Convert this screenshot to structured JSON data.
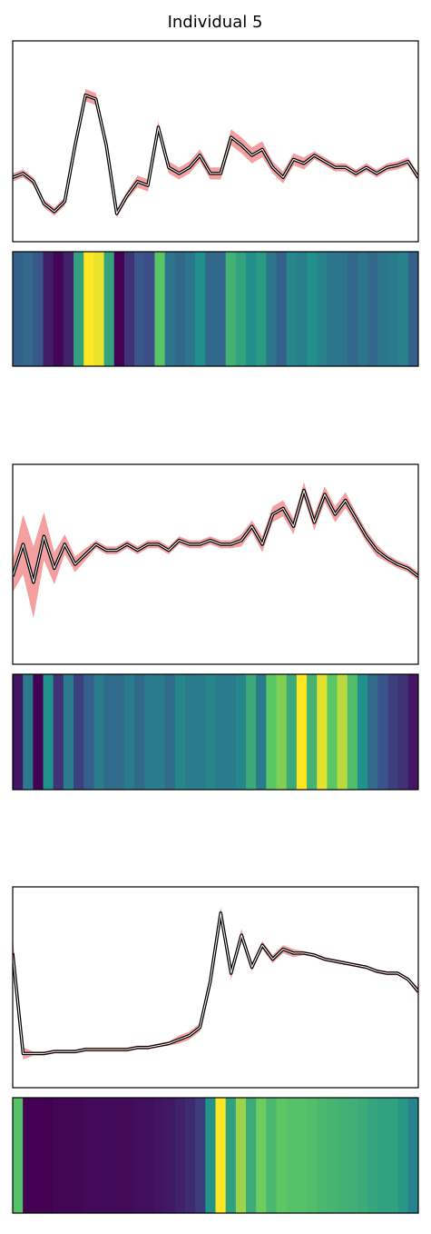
{
  "title": "Individual 5",
  "chart_data": [
    {
      "type": "line",
      "xlim": [
        0,
        39
      ],
      "ylim": [
        0,
        1
      ],
      "x": [
        0,
        1,
        2,
        3,
        4,
        5,
        6,
        7,
        8,
        9,
        10,
        11,
        12,
        13,
        14,
        15,
        16,
        17,
        18,
        19,
        20,
        21,
        22,
        23,
        24,
        25,
        26,
        27,
        28,
        29,
        30,
        31,
        32,
        33,
        34,
        35,
        36,
        37,
        38,
        39
      ],
      "values": [
        0.32,
        0.34,
        0.3,
        0.19,
        0.15,
        0.2,
        0.48,
        0.73,
        0.71,
        0.48,
        0.14,
        0.23,
        0.3,
        0.28,
        0.57,
        0.37,
        0.34,
        0.37,
        0.43,
        0.34,
        0.34,
        0.52,
        0.48,
        0.43,
        0.46,
        0.37,
        0.32,
        0.41,
        0.39,
        0.43,
        0.4,
        0.37,
        0.37,
        0.34,
        0.37,
        0.34,
        0.37,
        0.38,
        0.4,
        0.32
      ],
      "errors": [
        0.02,
        0.02,
        0.02,
        0.02,
        0.02,
        0.02,
        0.03,
        0.03,
        0.03,
        0.03,
        0.02,
        0.02,
        0.03,
        0.03,
        0.03,
        0.03,
        0.03,
        0.03,
        0.03,
        0.03,
        0.03,
        0.04,
        0.04,
        0.04,
        0.04,
        0.03,
        0.03,
        0.03,
        0.03,
        0.02,
        0.02,
        0.02,
        0.02,
        0.02,
        0.02,
        0.02,
        0.02,
        0.02,
        0.02,
        0.02
      ],
      "line_color": "#000000",
      "band_color": "#f08080"
    },
    {
      "type": "heatmap",
      "clim": [
        0.14,
        0.73
      ],
      "values": [
        0.32,
        0.34,
        0.3,
        0.19,
        0.15,
        0.2,
        0.48,
        0.73,
        0.71,
        0.48,
        0.14,
        0.23,
        0.3,
        0.28,
        0.57,
        0.37,
        0.34,
        0.37,
        0.43,
        0.34,
        0.34,
        0.52,
        0.48,
        0.43,
        0.46,
        0.37,
        0.32,
        0.41,
        0.39,
        0.43,
        0.4,
        0.37,
        0.37,
        0.34,
        0.37,
        0.34,
        0.37,
        0.38,
        0.4,
        0.32
      ]
    },
    {
      "type": "line",
      "xlim": [
        0,
        39
      ],
      "ylim": [
        0,
        1
      ],
      "x": [
        0,
        1,
        2,
        3,
        4,
        5,
        6,
        7,
        8,
        9,
        10,
        11,
        12,
        13,
        14,
        15,
        16,
        17,
        18,
        19,
        20,
        21,
        22,
        23,
        24,
        25,
        26,
        27,
        28,
        29,
        30,
        31,
        32,
        33,
        34,
        35,
        36,
        37,
        38,
        39
      ],
      "values": [
        0.44,
        0.6,
        0.41,
        0.64,
        0.48,
        0.6,
        0.5,
        0.55,
        0.6,
        0.57,
        0.57,
        0.6,
        0.57,
        0.6,
        0.6,
        0.57,
        0.62,
        0.6,
        0.6,
        0.62,
        0.6,
        0.6,
        0.62,
        0.69,
        0.6,
        0.75,
        0.78,
        0.69,
        0.87,
        0.71,
        0.85,
        0.75,
        0.82,
        0.73,
        0.64,
        0.57,
        0.53,
        0.5,
        0.48,
        0.44
      ],
      "errors": [
        0.08,
        0.15,
        0.18,
        0.12,
        0.08,
        0.05,
        0.04,
        0.03,
        0.02,
        0.02,
        0.02,
        0.02,
        0.02,
        0.02,
        0.02,
        0.02,
        0.02,
        0.02,
        0.02,
        0.02,
        0.02,
        0.02,
        0.03,
        0.03,
        0.04,
        0.04,
        0.04,
        0.04,
        0.04,
        0.04,
        0.04,
        0.04,
        0.04,
        0.03,
        0.03,
        0.03,
        0.02,
        0.02,
        0.02,
        0.02
      ],
      "line_color": "#000000",
      "band_color": "#f08080"
    },
    {
      "type": "heatmap",
      "clim": [
        0.41,
        0.87
      ],
      "values": [
        0.44,
        0.6,
        0.41,
        0.64,
        0.48,
        0.6,
        0.5,
        0.55,
        0.6,
        0.57,
        0.57,
        0.6,
        0.57,
        0.6,
        0.6,
        0.57,
        0.62,
        0.6,
        0.6,
        0.62,
        0.6,
        0.6,
        0.62,
        0.69,
        0.6,
        0.75,
        0.78,
        0.69,
        0.87,
        0.71,
        0.85,
        0.75,
        0.82,
        0.73,
        0.64,
        0.57,
        0.53,
        0.5,
        0.48,
        0.44
      ]
    },
    {
      "type": "line",
      "xlim": [
        0,
        39
      ],
      "ylim": [
        0,
        1
      ],
      "x": [
        0,
        1,
        2,
        3,
        4,
        5,
        6,
        7,
        8,
        9,
        10,
        11,
        12,
        13,
        14,
        15,
        16,
        17,
        18,
        19,
        20,
        21,
        22,
        23,
        24,
        25,
        26,
        27,
        28,
        29,
        30,
        31,
        32,
        33,
        34,
        35,
        36,
        37,
        38,
        39
      ],
      "values": [
        0.67,
        0.17,
        0.17,
        0.17,
        0.18,
        0.18,
        0.18,
        0.19,
        0.19,
        0.19,
        0.19,
        0.19,
        0.2,
        0.2,
        0.21,
        0.22,
        0.24,
        0.26,
        0.3,
        0.53,
        0.87,
        0.57,
        0.76,
        0.6,
        0.71,
        0.64,
        0.69,
        0.67,
        0.67,
        0.66,
        0.64,
        0.63,
        0.62,
        0.61,
        0.6,
        0.58,
        0.57,
        0.57,
        0.54,
        0.48
      ],
      "errors": [
        0.08,
        0.03,
        0.01,
        0.01,
        0.01,
        0.01,
        0.01,
        0.01,
        0.01,
        0.01,
        0.01,
        0.01,
        0.01,
        0.01,
        0.01,
        0.01,
        0.02,
        0.02,
        0.02,
        0.03,
        0.03,
        0.03,
        0.03,
        0.02,
        0.02,
        0.02,
        0.02,
        0.02,
        0.01,
        0.01,
        0.01,
        0.01,
        0.01,
        0.01,
        0.01,
        0.01,
        0.01,
        0.01,
        0.01,
        0.02
      ],
      "line_color": "#000000",
      "band_color": "#f08080"
    },
    {
      "type": "heatmap",
      "clim": [
        0.17,
        0.87
      ],
      "values": [
        0.67,
        0.17,
        0.17,
        0.17,
        0.18,
        0.18,
        0.18,
        0.19,
        0.19,
        0.19,
        0.19,
        0.19,
        0.2,
        0.2,
        0.21,
        0.22,
        0.24,
        0.26,
        0.3,
        0.53,
        0.87,
        0.57,
        0.76,
        0.6,
        0.71,
        0.64,
        0.69,
        0.67,
        0.67,
        0.66,
        0.64,
        0.63,
        0.62,
        0.61,
        0.6,
        0.58,
        0.57,
        0.57,
        0.54,
        0.48
      ]
    }
  ]
}
